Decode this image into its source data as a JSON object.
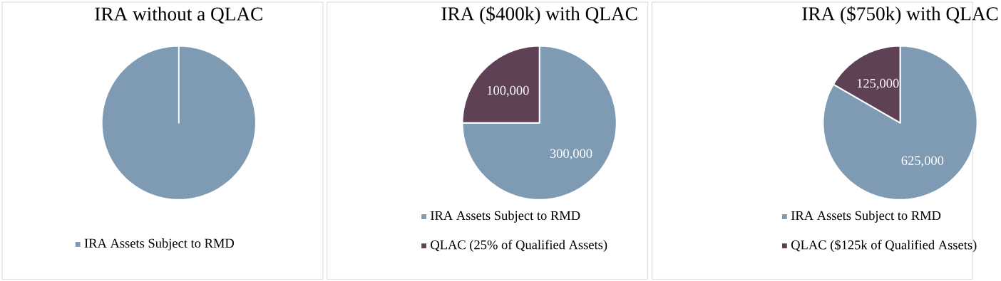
{
  "chart_data": [
    {
      "type": "pie",
      "title": "IRA without a QLAC",
      "categories": [
        "IRA Assets Subject to RMD"
      ],
      "values": [
        100
      ],
      "colors": [
        "#7f9bb4"
      ],
      "legend": "bottom"
    },
    {
      "type": "pie",
      "title": "IRA ($400k) with QLAC",
      "categories": [
        "IRA Assets Subject to RMD",
        "QLAC (25% of Qualified Assets)"
      ],
      "values": [
        300000,
        100000
      ],
      "colors": [
        "#7f9bb4",
        "#5f4155"
      ],
      "value_labels": [
        "300,000",
        "100,000"
      ],
      "legend": "bottom"
    },
    {
      "type": "pie",
      "title": "IRA ($750k) with QLAC",
      "categories": [
        "IRA Assets Subject to RMD",
        "QLAC ($125k of Qualified Assets)"
      ],
      "values": [
        625000,
        125000
      ],
      "colors": [
        "#7f9bb4",
        "#5f4155"
      ],
      "value_labels": [
        "625,000",
        "125,000"
      ],
      "legend": "bottom"
    }
  ]
}
